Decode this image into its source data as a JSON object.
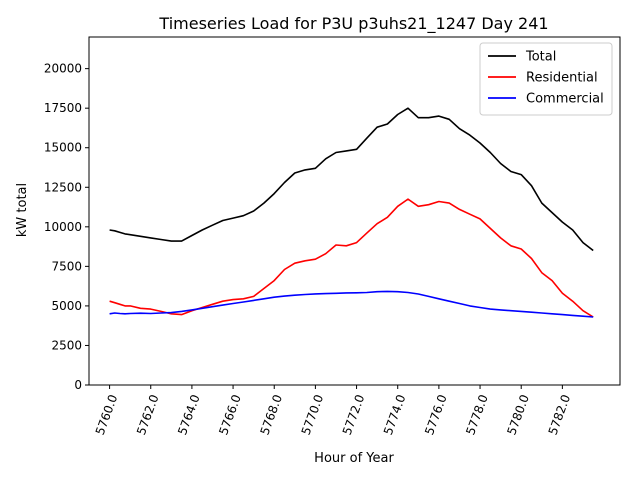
{
  "chart_data": {
    "type": "line",
    "title": "Timeseries Load for P3U p3uhs21_1247  Day 241",
    "xlabel": "Hour of Year",
    "ylabel": "kW total",
    "xlim": [
      5759.0,
      5784.8
    ],
    "ylim": [
      0,
      22000
    ],
    "xticks": [
      5760,
      5762,
      5764,
      5766,
      5768,
      5770,
      5772,
      5774,
      5776,
      5778,
      5780,
      5782
    ],
    "xtick_labels": [
      "5760.0",
      "5762.0",
      "5764.0",
      "5766.0",
      "5768.0",
      "5770.0",
      "5772.0",
      "5774.0",
      "5776.0",
      "5778.0",
      "5780.0",
      "5782.0"
    ],
    "yticks": [
      0,
      2500,
      5000,
      7500,
      10000,
      12500,
      15000,
      17500,
      20000
    ],
    "ytick_labels": [
      "0",
      "2500",
      "5000",
      "7500",
      "10000",
      "12500",
      "15000",
      "17500",
      "20000"
    ],
    "legend_position": "top-right",
    "grid": false,
    "series": [
      {
        "name": "Total",
        "color": "#000000",
        "x": [
          5760.0,
          5760.25,
          5760.5,
          5760.75,
          5761.0,
          5761.5,
          5762.0,
          5762.5,
          5763.0,
          5763.5,
          5764.0,
          5764.5,
          5765.0,
          5765.5,
          5766.0,
          5766.5,
          5767.0,
          5767.5,
          5768.0,
          5768.5,
          5769.0,
          5769.5,
          5770.0,
          5770.5,
          5771.0,
          5771.5,
          5772.0,
          5772.5,
          5773.0,
          5773.5,
          5774.0,
          5774.5,
          5775.0,
          5775.5,
          5776.0,
          5776.5,
          5777.0,
          5777.5,
          5778.0,
          5778.5,
          5779.0,
          5779.5,
          5780.0,
          5780.5,
          5781.0,
          5781.5,
          5782.0,
          5782.5,
          5783.0,
          5783.5
        ],
        "values": [
          9800,
          9750,
          9650,
          9550,
          9500,
          9400,
          9300,
          9200,
          9100,
          9100,
          9450,
          9800,
          10100,
          10400,
          10550,
          10700,
          11000,
          11500,
          12100,
          12800,
          13400,
          13600,
          13700,
          14300,
          14700,
          14800,
          14900,
          15600,
          16300,
          16500,
          17100,
          17500,
          16900,
          16900,
          17000,
          16800,
          16200,
          15800,
          15300,
          14700,
          14000,
          13500,
          13300,
          12600,
          11500,
          10900,
          10300,
          9800,
          9000,
          8500
        ]
      },
      {
        "name": "Residential",
        "color": "#ff0000",
        "x": [
          5760.0,
          5760.25,
          5760.5,
          5760.75,
          5761.0,
          5761.5,
          5762.0,
          5762.5,
          5763.0,
          5763.5,
          5764.0,
          5764.5,
          5765.0,
          5765.5,
          5766.0,
          5766.5,
          5767.0,
          5767.5,
          5768.0,
          5768.5,
          5769.0,
          5769.5,
          5770.0,
          5770.5,
          5771.0,
          5771.5,
          5772.0,
          5772.5,
          5773.0,
          5773.5,
          5774.0,
          5774.5,
          5775.0,
          5775.5,
          5776.0,
          5776.5,
          5777.0,
          5777.5,
          5778.0,
          5778.5,
          5779.0,
          5779.5,
          5780.0,
          5780.5,
          5781.0,
          5781.5,
          5782.0,
          5782.5,
          5783.0,
          5783.5
        ],
        "values": [
          5300,
          5200,
          5100,
          5000,
          5000,
          4850,
          4800,
          4650,
          4500,
          4450,
          4700,
          4900,
          5100,
          5300,
          5400,
          5450,
          5600,
          6100,
          6600,
          7300,
          7700,
          7850,
          7950,
          8300,
          8850,
          8800,
          9000,
          9600,
          10200,
          10600,
          11300,
          11750,
          11300,
          11400,
          11600,
          11500,
          11100,
          10800,
          10500,
          9900,
          9300,
          8800,
          8600,
          8000,
          7100,
          6600,
          5800,
          5300,
          4700,
          4300
        ]
      },
      {
        "name": "Commercial",
        "color": "#0000ff",
        "x": [
          5760.0,
          5760.25,
          5760.5,
          5760.75,
          5761.0,
          5761.5,
          5762.0,
          5762.5,
          5763.0,
          5763.5,
          5764.0,
          5764.5,
          5765.0,
          5765.5,
          5766.0,
          5766.5,
          5767.0,
          5767.5,
          5768.0,
          5768.5,
          5769.0,
          5769.5,
          5770.0,
          5770.5,
          5771.0,
          5771.5,
          5772.0,
          5772.5,
          5773.0,
          5773.5,
          5774.0,
          5774.5,
          5775.0,
          5775.5,
          5776.0,
          5776.5,
          5777.0,
          5777.5,
          5778.0,
          5778.5,
          5779.0,
          5779.5,
          5780.0,
          5780.5,
          5781.0,
          5781.5,
          5782.0,
          5782.5,
          5783.0,
          5783.5
        ],
        "values": [
          4500,
          4550,
          4520,
          4500,
          4520,
          4540,
          4520,
          4550,
          4580,
          4650,
          4750,
          4850,
          4950,
          5050,
          5150,
          5250,
          5350,
          5450,
          5550,
          5620,
          5680,
          5720,
          5760,
          5780,
          5800,
          5820,
          5830,
          5850,
          5900,
          5920,
          5900,
          5850,
          5750,
          5600,
          5450,
          5300,
          5150,
          5000,
          4900,
          4800,
          4750,
          4700,
          4650,
          4600,
          4550,
          4500,
          4450,
          4400,
          4350,
          4300
        ]
      }
    ]
  }
}
